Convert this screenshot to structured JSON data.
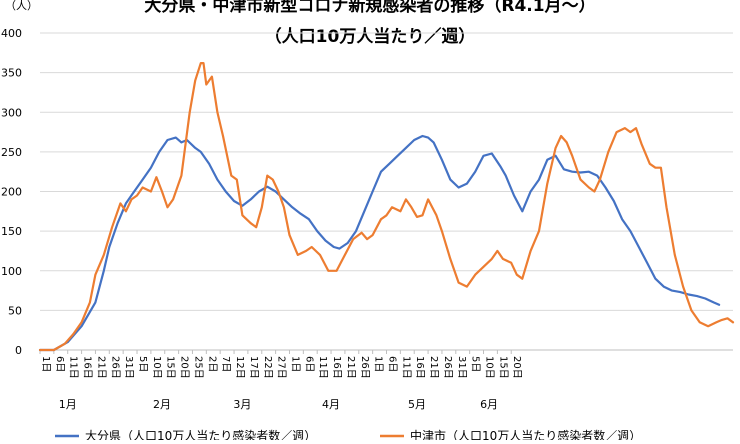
{
  "chart_data": {
    "type": "line",
    "title": "大分県・中津市新型コロナ新規感染者の推移（R4.1月〜）",
    "subtitle": "（人口10万人当たり／週）",
    "ylabel": "（人）",
    "ylim": [
      0,
      400
    ],
    "yticks": [
      0,
      50,
      100,
      150,
      200,
      250,
      300,
      350,
      400
    ],
    "grid": true,
    "legend_position": "bottom",
    "x_tick_labels": [
      "1日",
      "6日",
      "11日",
      "16日",
      "21日",
      "26日",
      "31日",
      "5日",
      "10日",
      "15日",
      "20日",
      "25日",
      "2日",
      "7日",
      "12日",
      "17日",
      "22日",
      "27日",
      "1日",
      "6日",
      "11日",
      "16日",
      "21日",
      "26日",
      "1日",
      "6日",
      "11日",
      "16日",
      "21日",
      "26日",
      "31日",
      "5日",
      "10日",
      "15日",
      "20日"
    ],
    "x_tick_day_index": [
      0,
      5,
      10,
      15,
      20,
      25,
      30,
      35,
      40,
      45,
      50,
      55,
      60,
      65,
      70,
      75,
      80,
      85,
      90,
      95,
      100,
      105,
      110,
      115,
      120,
      125,
      130,
      135,
      140,
      145,
      150,
      155,
      160,
      165,
      170
    ],
    "month_labels": [
      {
        "label": "1月",
        "day_index": 10
      },
      {
        "label": "2月",
        "day_index": 44
      },
      {
        "label": "3月",
        "day_index": 73
      },
      {
        "label": "4月",
        "day_index": 105
      },
      {
        "label": "5月",
        "day_index": 136
      },
      {
        "label": "6月",
        "day_index": 162
      }
    ],
    "series": [
      {
        "name": "大分県（人口10万人当たり感染者数／週）",
        "color": "#4472C4",
        "points": [
          [
            0,
            0
          ],
          [
            5,
            0
          ],
          [
            10,
            10
          ],
          [
            15,
            30
          ],
          [
            20,
            60
          ],
          [
            23,
            100
          ],
          [
            25,
            130
          ],
          [
            28,
            160
          ],
          [
            31,
            185
          ],
          [
            34,
            200
          ],
          [
            37,
            215
          ],
          [
            40,
            230
          ],
          [
            43,
            250
          ],
          [
            46,
            265
          ],
          [
            49,
            268
          ],
          [
            51,
            262
          ],
          [
            53,
            265
          ],
          [
            56,
            255
          ],
          [
            58,
            250
          ],
          [
            61,
            235
          ],
          [
            64,
            215
          ],
          [
            67,
            200
          ],
          [
            70,
            188
          ],
          [
            73,
            182
          ],
          [
            76,
            190
          ],
          [
            79,
            200
          ],
          [
            82,
            206
          ],
          [
            85,
            200
          ],
          [
            88,
            190
          ],
          [
            91,
            180
          ],
          [
            94,
            172
          ],
          [
            97,
            165
          ],
          [
            100,
            150
          ],
          [
            103,
            138
          ],
          [
            106,
            130
          ],
          [
            108,
            128
          ],
          [
            111,
            135
          ],
          [
            114,
            150
          ],
          [
            117,
            175
          ],
          [
            120,
            200
          ],
          [
            123,
            225
          ],
          [
            126,
            235
          ],
          [
            129,
            245
          ],
          [
            132,
            255
          ],
          [
            135,
            265
          ],
          [
            138,
            270
          ],
          [
            140,
            268
          ],
          [
            142,
            262
          ],
          [
            145,
            240
          ],
          [
            148,
            215
          ],
          [
            151,
            205
          ],
          [
            154,
            210
          ],
          [
            157,
            225
          ],
          [
            160,
            245
          ],
          [
            163,
            248
          ],
          [
            166,
            232
          ],
          [
            168,
            220
          ],
          [
            171,
            195
          ],
          [
            174,
            175
          ],
          [
            177,
            200
          ],
          [
            180,
            215
          ],
          [
            183,
            240
          ],
          [
            186,
            245
          ],
          [
            189,
            228
          ],
          [
            192,
            225
          ],
          [
            195,
            224
          ],
          [
            198,
            225
          ],
          [
            201,
            220
          ],
          [
            204,
            205
          ],
          [
            207,
            188
          ],
          [
            210,
            165
          ],
          [
            213,
            150
          ],
          [
            216,
            130
          ],
          [
            219,
            110
          ],
          [
            222,
            90
          ],
          [
            225,
            80
          ],
          [
            228,
            75
          ],
          [
            231,
            73
          ],
          [
            234,
            70
          ],
          [
            237,
            68
          ],
          [
            240,
            65
          ],
          [
            243,
            60
          ],
          [
            245,
            57
          ]
        ]
      },
      {
        "name": "中津市（人口10万人当たり感染者数／週）",
        "color": "#ED7D31",
        "points": [
          [
            0,
            0
          ],
          [
            5,
            0
          ],
          [
            9,
            8
          ],
          [
            12,
            20
          ],
          [
            15,
            35
          ],
          [
            18,
            60
          ],
          [
            20,
            95
          ],
          [
            23,
            120
          ],
          [
            26,
            155
          ],
          [
            29,
            185
          ],
          [
            31,
            175
          ],
          [
            33,
            190
          ],
          [
            35,
            195
          ],
          [
            37,
            205
          ],
          [
            40,
            200
          ],
          [
            42,
            218
          ],
          [
            44,
            200
          ],
          [
            46,
            180
          ],
          [
            48,
            190
          ],
          [
            51,
            220
          ],
          [
            54,
            300
          ],
          [
            56,
            340
          ],
          [
            58,
            362
          ],
          [
            59,
            362
          ],
          [
            60,
            335
          ],
          [
            62,
            345
          ],
          [
            64,
            300
          ],
          [
            66,
            270
          ],
          [
            69,
            220
          ],
          [
            71,
            215
          ],
          [
            73,
            170
          ],
          [
            76,
            160
          ],
          [
            78,
            155
          ],
          [
            80,
            180
          ],
          [
            82,
            220
          ],
          [
            84,
            215
          ],
          [
            86,
            200
          ],
          [
            88,
            180
          ],
          [
            90,
            145
          ],
          [
            93,
            120
          ],
          [
            96,
            125
          ],
          [
            98,
            130
          ],
          [
            101,
            120
          ],
          [
            104,
            100
          ],
          [
            107,
            100
          ],
          [
            110,
            120
          ],
          [
            113,
            140
          ],
          [
            116,
            148
          ],
          [
            118,
            140
          ],
          [
            120,
            145
          ],
          [
            123,
            165
          ],
          [
            125,
            170
          ],
          [
            127,
            180
          ],
          [
            130,
            175
          ],
          [
            132,
            190
          ],
          [
            134,
            180
          ],
          [
            136,
            168
          ],
          [
            138,
            170
          ],
          [
            140,
            190
          ],
          [
            143,
            170
          ],
          [
            145,
            150
          ],
          [
            148,
            115
          ],
          [
            151,
            85
          ],
          [
            154,
            80
          ],
          [
            157,
            95
          ],
          [
            160,
            105
          ],
          [
            163,
            115
          ],
          [
            165,
            125
          ],
          [
            167,
            115
          ],
          [
            170,
            110
          ],
          [
            172,
            95
          ],
          [
            174,
            90
          ],
          [
            177,
            125
          ],
          [
            180,
            150
          ],
          [
            183,
            210
          ],
          [
            186,
            255
          ],
          [
            188,
            270
          ],
          [
            190,
            262
          ],
          [
            192,
            245
          ],
          [
            195,
            215
          ],
          [
            198,
            205
          ],
          [
            200,
            200
          ],
          [
            202,
            215
          ],
          [
            205,
            250
          ],
          [
            208,
            275
          ],
          [
            211,
            280
          ],
          [
            213,
            275
          ],
          [
            215,
            280
          ],
          [
            217,
            260
          ],
          [
            220,
            235
          ],
          [
            222,
            230
          ],
          [
            224,
            230
          ],
          [
            226,
            180
          ],
          [
            229,
            120
          ],
          [
            232,
            80
          ],
          [
            235,
            50
          ],
          [
            238,
            35
          ],
          [
            241,
            30
          ],
          [
            244,
            35
          ],
          [
            246,
            38
          ],
          [
            248,
            40
          ],
          [
            250,
            35
          ]
        ]
      }
    ]
  }
}
